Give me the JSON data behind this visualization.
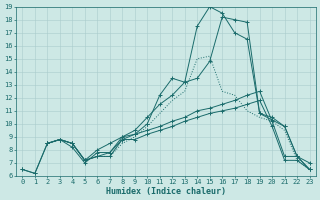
{
  "xlabel": "Humidex (Indice chaleur)",
  "xlim": [
    -0.5,
    23.5
  ],
  "ylim": [
    6,
    19
  ],
  "xticks": [
    0,
    1,
    2,
    3,
    4,
    5,
    6,
    7,
    8,
    9,
    10,
    11,
    12,
    13,
    14,
    15,
    16,
    17,
    18,
    19,
    20,
    21,
    22,
    23
  ],
  "yticks": [
    6,
    7,
    8,
    9,
    10,
    11,
    12,
    13,
    14,
    15,
    16,
    17,
    18,
    19
  ],
  "background_color": "#cde8e5",
  "grid_color": "#aacccc",
  "line_color": "#1a6b6b",
  "lines": [
    {
      "x": [
        0,
        1,
        2,
        3,
        4,
        5,
        6,
        7,
        8,
        9,
        10,
        11,
        12,
        13,
        14,
        15,
        16,
        17,
        18,
        19,
        20,
        21,
        22,
        23
      ],
      "y": [
        6.5,
        6.2,
        8.5,
        8.8,
        8.5,
        7.2,
        7.5,
        7.5,
        8.8,
        8.8,
        9.2,
        9.5,
        9.8,
        10.2,
        10.5,
        10.8,
        11.0,
        11.2,
        11.5,
        11.8,
        9.8,
        7.2,
        7.2,
        6.5
      ],
      "linestyle": "-",
      "linewidth": 0.7,
      "markersize": 2.5,
      "has_markers": true
    },
    {
      "x": [
        0,
        1,
        2,
        3,
        4,
        5,
        6,
        7,
        8,
        9,
        10,
        11,
        12,
        13,
        14,
        15,
        16,
        17,
        18,
        19,
        20,
        21,
        22,
        23
      ],
      "y": [
        6.5,
        6.2,
        8.5,
        8.8,
        8.5,
        7.2,
        7.5,
        7.8,
        9.0,
        9.2,
        9.5,
        9.8,
        10.2,
        10.5,
        11.0,
        11.2,
        11.5,
        11.8,
        12.2,
        12.5,
        10.2,
        7.5,
        7.5,
        7.0
      ],
      "linestyle": "-",
      "linewidth": 0.7,
      "markersize": 2.5,
      "has_markers": true
    },
    {
      "x": [
        2,
        3,
        4,
        5,
        6,
        7,
        8,
        9,
        10,
        11,
        12,
        13,
        14,
        15,
        16,
        17,
        18,
        19,
        20,
        21,
        22,
        23
      ],
      "y": [
        8.5,
        8.8,
        8.5,
        7.2,
        8.0,
        8.5,
        9.0,
        9.5,
        10.5,
        11.5,
        12.2,
        13.2,
        13.5,
        14.8,
        18.2,
        18.0,
        17.8,
        10.8,
        10.3,
        9.8,
        7.5,
        6.5
      ],
      "linestyle": "-",
      "linewidth": 0.7,
      "markersize": 2.5,
      "has_markers": true
    },
    {
      "x": [
        2,
        3,
        4,
        5,
        6,
        7,
        8,
        9,
        10,
        11,
        12,
        13,
        14,
        15,
        16,
        17,
        18,
        19,
        20,
        21,
        22,
        23
      ],
      "y": [
        8.5,
        8.8,
        8.2,
        7.0,
        7.8,
        7.8,
        8.8,
        9.2,
        10.0,
        12.2,
        13.5,
        13.2,
        17.5,
        19.0,
        18.5,
        17.0,
        16.5,
        10.8,
        10.5,
        9.8,
        7.5,
        6.5
      ],
      "linestyle": "-",
      "linewidth": 0.7,
      "markersize": 2.5,
      "has_markers": true
    },
    {
      "x": [
        2,
        3,
        4,
        5,
        6,
        7,
        8,
        9,
        10,
        11,
        12,
        13,
        14,
        15,
        16,
        17,
        18,
        19,
        20,
        21,
        22,
        23
      ],
      "y": [
        8.5,
        8.8,
        8.5,
        7.2,
        7.5,
        7.5,
        8.5,
        9.0,
        9.8,
        10.8,
        11.8,
        12.5,
        15.0,
        15.2,
        12.5,
        12.2,
        11.0,
        10.5,
        10.2,
        9.5,
        7.2,
        6.5
      ],
      "linestyle": ":",
      "linewidth": 0.7,
      "markersize": 2.0,
      "has_markers": false
    }
  ]
}
